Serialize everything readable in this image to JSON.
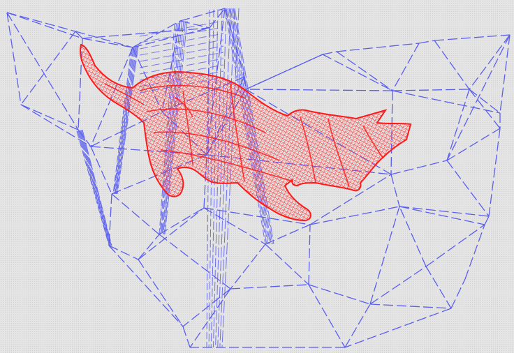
{
  "scene": {
    "background_color": "#e4e4e4",
    "cage_color": "#5a5ef0",
    "cage_mesh_style": "dashed-wireframe",
    "model_color": "#ff1a1a",
    "model_mesh_style": "dense-wireframe",
    "model_subject": "cat"
  }
}
